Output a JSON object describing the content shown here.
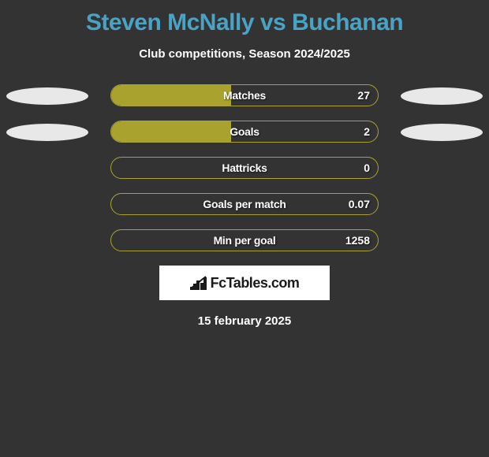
{
  "title": "Steven McNally vs Buchanan",
  "subtitle": "Club competitions, Season 2024/2025",
  "title_color": "#4aa3c4",
  "text_color": "#ffffff",
  "background_color": "#333333",
  "ellipse_color": "#e8e8e8",
  "bar_color": "#a9a22f",
  "brand_bg": "#ffffff",
  "brand_text": "FcTables.com",
  "date": "15 february 2025",
  "rows": [
    {
      "label": "Matches",
      "value": "27",
      "fill_pct": 45,
      "show_left_ellipse": true,
      "show_right_ellipse": true
    },
    {
      "label": "Goals",
      "value": "2",
      "fill_pct": 45,
      "show_left_ellipse": true,
      "show_right_ellipse": true
    },
    {
      "label": "Hattricks",
      "value": "0",
      "fill_pct": 0,
      "show_left_ellipse": false,
      "show_right_ellipse": false
    },
    {
      "label": "Goals per match",
      "value": "0.07",
      "fill_pct": 0,
      "show_left_ellipse": false,
      "show_right_ellipse": false
    },
    {
      "label": "Min per goal",
      "value": "1258",
      "fill_pct": 0,
      "show_left_ellipse": false,
      "show_right_ellipse": false
    }
  ],
  "brand_bar_heights": [
    4,
    8,
    12,
    9,
    16
  ]
}
